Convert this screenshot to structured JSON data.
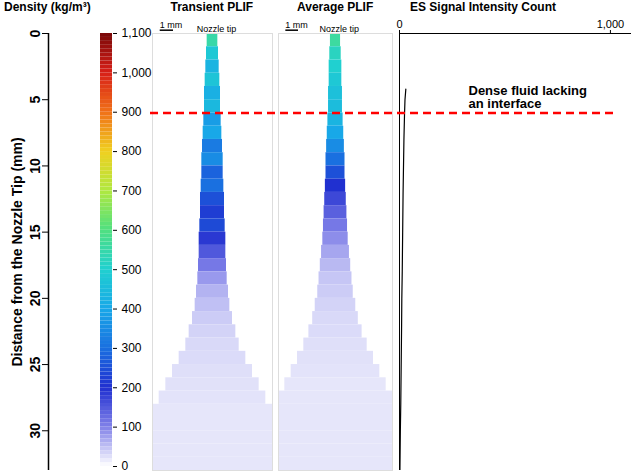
{
  "chart_data": {
    "type": "composite",
    "y_label": "Distance from the Nozzle Tip (mm)",
    "ylim": [
      0,
      33
    ],
    "yticks": [
      0,
      5,
      10,
      15,
      20,
      25,
      30
    ],
    "colorbar": {
      "title": "Density (kg/m³)",
      "range": [
        0,
        1100
      ],
      "ticks": [
        0,
        100,
        200,
        300,
        400,
        500,
        600,
        700,
        800,
        900,
        1000,
        1100
      ],
      "colors": [
        "#ffffff",
        "#8080e8",
        "#2030d0",
        "#1a70e0",
        "#18a8e8",
        "#20d0d0",
        "#50e080",
        "#b0e840",
        "#f0d020",
        "#f07018",
        "#d82018",
        "#780808"
      ]
    },
    "panels": [
      {
        "type": "heatmap",
        "title": "Transient PLIF",
        "xlim": [
          -4.5,
          4.5
        ],
        "depth_edges": [
          0,
          1,
          2,
          3,
          4,
          5,
          6,
          7,
          8,
          9,
          10,
          11,
          12,
          13,
          14,
          15,
          16,
          17,
          18,
          19,
          20,
          21,
          22,
          23,
          24,
          25,
          26,
          27,
          28,
          29,
          30,
          31,
          32,
          33
        ],
        "density": [
          550,
          480,
          430,
          470,
          420,
          440,
          380,
          400,
          320,
          350,
          280,
          300,
          250,
          220,
          240,
          190,
          150,
          110,
          80,
          60,
          50,
          40,
          35,
          30,
          28,
          25,
          24,
          22,
          20,
          20,
          20,
          20,
          20
        ],
        "width": [
          0.8,
          0.9,
          1.0,
          1.1,
          1.2,
          1.2,
          1.3,
          1.4,
          1.5,
          1.6,
          1.6,
          1.7,
          1.8,
          1.8,
          1.9,
          2.0,
          2.0,
          2.1,
          2.2,
          2.4,
          2.6,
          3.0,
          3.5,
          4.0,
          5.0,
          6.0,
          7.0,
          8.0,
          9.0,
          9.0,
          9.0,
          9.0,
          9.0
        ],
        "scale_bar": {
          "length": 1,
          "label": "1 mm"
        },
        "nozzle_label": "Nozzle tip"
      },
      {
        "type": "heatmap",
        "title": "Average PLIF",
        "xlim": [
          -4.5,
          4.5
        ],
        "depth_edges": [
          0,
          1,
          2,
          3,
          4,
          5,
          6,
          7,
          8,
          9,
          10,
          11,
          12,
          13,
          14,
          15,
          16,
          17,
          18,
          19,
          20,
          21,
          22,
          23,
          24,
          25,
          26,
          27,
          28,
          29,
          30,
          31,
          32,
          33
        ],
        "density": [
          560,
          520,
          500,
          480,
          460,
          450,
          430,
          400,
          350,
          300,
          250,
          200,
          170,
          140,
          110,
          90,
          70,
          55,
          45,
          40,
          35,
          30,
          28,
          25,
          24,
          22,
          20,
          20,
          20,
          20,
          20,
          20,
          20
        ],
        "width": [
          0.8,
          0.9,
          1.0,
          1.0,
          1.1,
          1.1,
          1.2,
          1.3,
          1.4,
          1.5,
          1.5,
          1.6,
          1.7,
          1.8,
          1.9,
          2.0,
          2.2,
          2.4,
          2.6,
          2.8,
          3.2,
          3.6,
          4.2,
          5.0,
          6.0,
          7.0,
          8.0,
          9.0,
          9.0,
          9.0,
          9.0,
          9.0,
          9.0
        ],
        "scale_bar": {
          "length": 1,
          "label": "1 mm"
        },
        "nozzle_label": "Nozzle tip"
      }
    ],
    "es": {
      "type": "line",
      "title": "ES Signal Intensity Count",
      "xlim": [
        0,
        1100
      ],
      "xticks": [
        0,
        1000
      ],
      "depth": [
        4.2,
        5,
        6,
        8,
        10,
        12,
        15,
        18,
        20,
        22,
        25,
        28,
        30,
        33
      ],
      "values": [
        30,
        26,
        24,
        21,
        19,
        17,
        15,
        13,
        11,
        10,
        8,
        6,
        4,
        2
      ],
      "color": "#000000"
    },
    "annotation": {
      "text": "Dense fluid lacking an interface",
      "depth": 6,
      "color": "#ff0000",
      "line_style": "dashed"
    }
  }
}
